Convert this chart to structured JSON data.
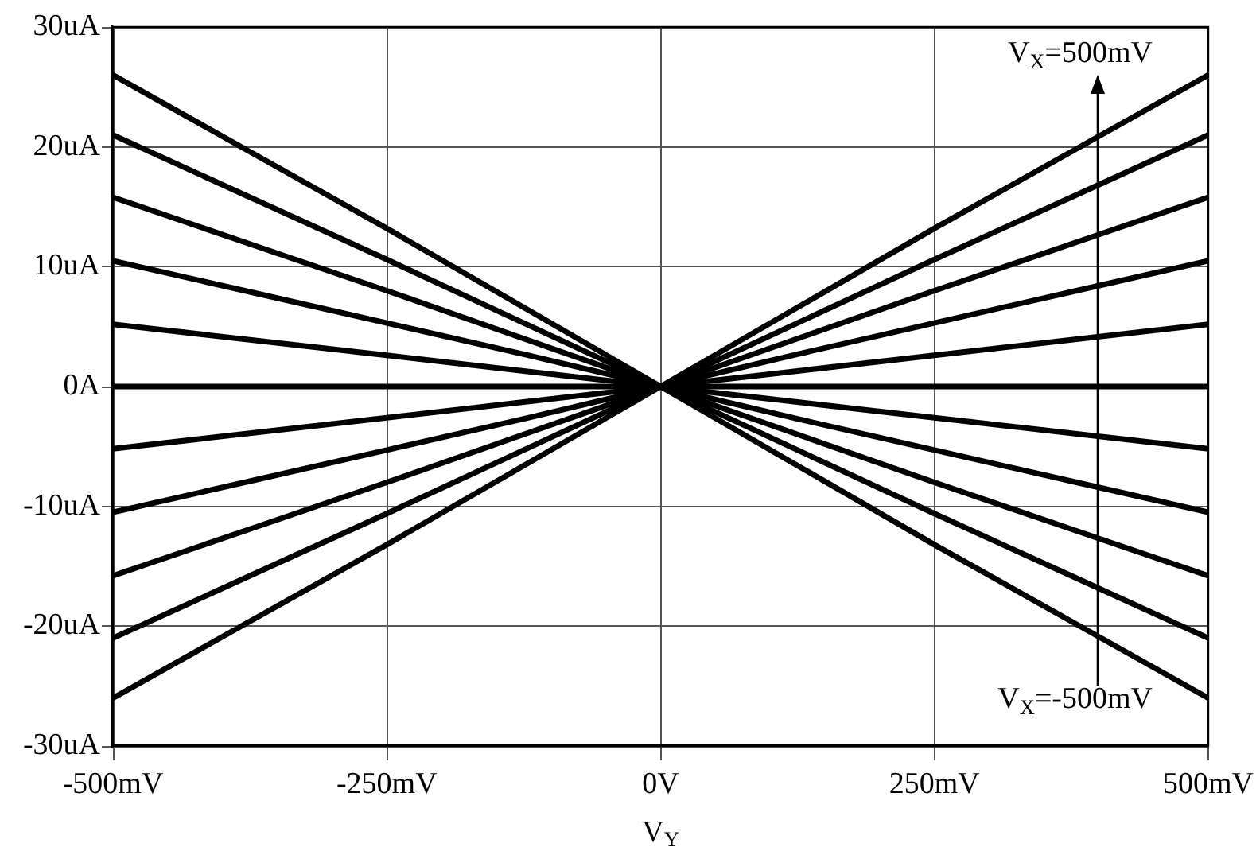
{
  "chart_data": {
    "type": "line",
    "xlabel": "V$_{Y}$",
    "x": [
      -500,
      -375,
      -250,
      -125,
      0,
      125,
      250,
      375,
      500
    ],
    "series": [
      {
        "color": "#000000",
        "values": [
          26,
          19.6,
          13.2,
          6.6,
          0,
          -6.6,
          -13.2,
          -19.6,
          -26
        ]
      },
      {
        "color": "#000000",
        "values": [
          21,
          15.8,
          10.6,
          5.3,
          0,
          -5.3,
          -10.6,
          -15.8,
          -21
        ]
      },
      {
        "color": "#000000",
        "values": [
          15.8,
          11.9,
          8,
          4,
          0,
          -4,
          -8,
          -11.9,
          -15.8
        ]
      },
      {
        "color": "#000000",
        "values": [
          10.5,
          7.9,
          5.3,
          2.7,
          0,
          -2.7,
          -5.3,
          -7.9,
          -10.5
        ]
      },
      {
        "color": "#000000",
        "values": [
          5.2,
          3.9,
          2.6,
          1.3,
          0,
          -1.3,
          -2.6,
          -3.9,
          -5.2
        ]
      },
      {
        "color": "#000000",
        "values": [
          0,
          0,
          0,
          0,
          0,
          0,
          0,
          0,
          0
        ]
      },
      {
        "color": "#000000",
        "values": [
          -5.2,
          -3.9,
          -2.6,
          -1.3,
          0,
          1.3,
          2.6,
          3.9,
          5.2
        ]
      },
      {
        "color": "#000000",
        "values": [
          -10.5,
          -7.9,
          -5.3,
          -2.7,
          0,
          2.7,
          5.3,
          7.9,
          10.5
        ]
      },
      {
        "color": "#000000",
        "values": [
          -15.8,
          -11.9,
          -8,
          -4,
          0,
          4,
          8,
          11.9,
          15.8
        ]
      },
      {
        "color": "#000000",
        "values": [
          -21,
          -15.8,
          -10.6,
          -5.3,
          0,
          5.3,
          10.6,
          15.8,
          21
        ]
      },
      {
        "color": "#000000",
        "values": [
          -26,
          -19.6,
          -13.2,
          -6.6,
          0,
          6.6,
          13.2,
          19.6,
          26
        ]
      }
    ],
    "xlim": [
      -500,
      500
    ],
    "xticks": [
      {
        "value": -500,
        "label": "-500mV"
      },
      {
        "value": -250,
        "label": "-250mV"
      },
      {
        "value": 0,
        "label": "0V"
      },
      {
        "value": 250,
        "label": "250mV"
      },
      {
        "value": 500,
        "label": "500mV"
      }
    ],
    "ylim": [
      -30,
      30
    ],
    "yticks": [
      {
        "value": -30,
        "label": "-30uA"
      },
      {
        "value": -20,
        "label": "-20uA"
      },
      {
        "value": -10,
        "label": "-10uA"
      },
      {
        "value": 0,
        "label": "0A"
      },
      {
        "value": 10,
        "label": "10uA"
      },
      {
        "value": 20,
        "label": "20uA"
      },
      {
        "value": 30,
        "label": "30uA"
      }
    ],
    "grid": true,
    "annotations": [
      "V$_{X}$=500mV",
      "V$_{X}$=-500mV"
    ]
  }
}
